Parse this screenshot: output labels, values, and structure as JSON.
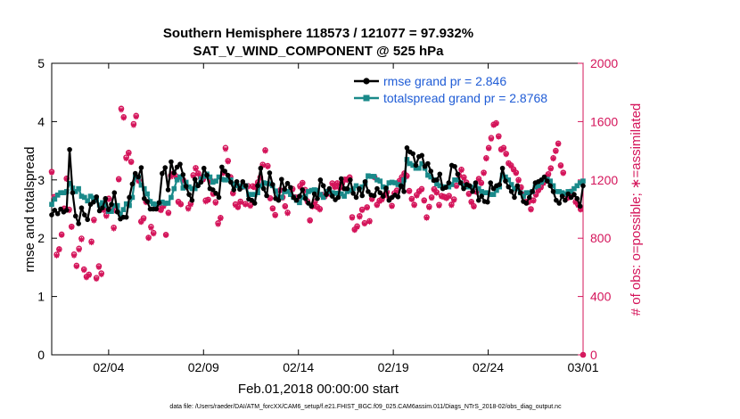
{
  "chart_data": {
    "type": "line",
    "title": "Southern Hemisphere 118573 / 121077 = 97.932%",
    "subtitle": "SAT_V_WIND_COMPONENT @ 525 hPa",
    "xlabel": "Feb.01,2018 00:00:00 start",
    "ylabel_left": "rmse and totalspread",
    "ylabel_right": "# of obs: o=possible; ∗=assimilated",
    "footer": "data file: /Users/raeder/DAI/ATM_forcXX/CAM6_setup/f.e21.FHIST_BGC.f09_025.CAM6assim.011/Diags_NTrS_2018-02/obs_diag_output.nc",
    "x_range_days": [
      0,
      28
    ],
    "ylim_left": [
      0,
      5
    ],
    "ylim_right": [
      0,
      2000
    ],
    "grid": false,
    "legend_position": "top-right",
    "x_ticks": [
      {
        "day": 3,
        "label": "02/04"
      },
      {
        "day": 8,
        "label": "02/09"
      },
      {
        "day": 13,
        "label": "02/14"
      },
      {
        "day": 18,
        "label": "02/19"
      },
      {
        "day": 23,
        "label": "02/24"
      },
      {
        "day": 28,
        "label": "03/01"
      }
    ],
    "y_ticks_left": [
      "0",
      "1",
      "2",
      "3",
      "4",
      "5"
    ],
    "y_ticks_right": [
      "0",
      "400",
      "800",
      "1200",
      "1600",
      "2000"
    ],
    "colors": {
      "rmse": "#000000",
      "spread": "#1a8a8a",
      "obs": "#d4145a",
      "legend_text": "#1f5cd6"
    },
    "series": [
      {
        "name": "rmse grand pr = 2.846",
        "axis": "left",
        "values": [
          2.4,
          2.48,
          2.42,
          2.5,
          2.45,
          2.48,
          3.52,
          2.78,
          2.38,
          2.25,
          2.52,
          2.4,
          2.32,
          2.58,
          2.62,
          2.71,
          2.47,
          2.52,
          2.68,
          2.49,
          2.58,
          2.78,
          2.45,
          2.33,
          2.36,
          2.36,
          2.7,
          2.93,
          3.11,
          3.05,
          3.21,
          2.68,
          2.63,
          2.5,
          2.5,
          2.5,
          2.61,
          3.11,
          3.21,
          2.83,
          3.31,
          3.12,
          3.22,
          3.27,
          3.09,
          2.89,
          2.75,
          2.65,
          3.01,
          2.9,
          2.96,
          3.2,
          3.08,
          2.85,
          2.83,
          2.77,
          2.7,
          3.22,
          3.15,
          3.08,
          2.96,
          2.83,
          2.97,
          2.84,
          2.97,
          2.9,
          2.67,
          2.65,
          2.6,
          2.9,
          3.2,
          2.85,
          2.73,
          3.12,
          2.92,
          2.68,
          2.65,
          3.01,
          2.84,
          2.94,
          2.87,
          2.7,
          2.65,
          2.72,
          2.83,
          2.68,
          2.6,
          2.55,
          2.76,
          2.68,
          3.0,
          2.9,
          2.75,
          2.85,
          2.72,
          2.66,
          2.7,
          3.02,
          2.85,
          2.85,
          3.0,
          2.77,
          2.7,
          2.85,
          2.73,
          2.97,
          2.8,
          2.74,
          2.73,
          2.85,
          2.78,
          2.72,
          2.86,
          2.65,
          2.7,
          2.74,
          2.71,
          2.9,
          2.8,
          3.55,
          3.48,
          3.45,
          3.25,
          3.4,
          3.42,
          3.23,
          3.28,
          3.15,
          2.99,
          3.0,
          3.1,
          2.85,
          2.87,
          2.95,
          3.25,
          3.23,
          3.1,
          2.95,
          2.85,
          2.92,
          2.9,
          2.8,
          2.95,
          2.65,
          2.72,
          2.63,
          2.62,
          2.95,
          2.85,
          2.9,
          2.92,
          3.2,
          2.98,
          2.88,
          2.8,
          2.7,
          2.9,
          2.78,
          2.63,
          2.6,
          2.7,
          2.8,
          2.95,
          2.97,
          3.0,
          3.05,
          2.98,
          2.9,
          2.8,
          2.65,
          2.6,
          2.72,
          2.65,
          2.76,
          2.7,
          2.75,
          2.68,
          2.55,
          2.9
        ]
      },
      {
        "name": "totalspread grand pr = 2.8768",
        "axis": "left",
        "values": [
          2.58,
          2.67,
          2.74,
          2.78,
          2.78,
          2.8,
          2.94,
          2.86,
          2.8,
          2.85,
          2.72,
          2.7,
          2.64,
          2.72,
          2.69,
          2.65,
          2.57,
          2.61,
          2.57,
          2.46,
          2.46,
          2.56,
          2.56,
          2.41,
          2.49,
          2.59,
          2.56,
          2.7,
          3.05,
          3.05,
          2.91,
          2.85,
          2.76,
          2.63,
          2.59,
          2.58,
          2.6,
          2.62,
          2.6,
          2.6,
          2.7,
          2.85,
          3.0,
          3.05,
          2.86,
          2.96,
          2.88,
          2.85,
          2.85,
          2.92,
          3.02,
          3.06,
          3.1,
          3.05,
          2.96,
          2.98,
          3.05,
          3.01,
          3.0,
          3.0,
          3.0,
          2.93,
          2.9,
          2.9,
          2.88,
          2.9,
          2.75,
          2.75,
          2.75,
          2.78,
          2.9,
          2.95,
          2.94,
          2.93,
          2.9,
          2.81,
          2.7,
          2.7,
          2.8,
          2.8,
          2.75,
          2.7,
          2.65,
          2.61,
          2.7,
          2.72,
          2.8,
          2.82,
          2.83,
          2.82,
          2.75,
          2.7,
          2.8,
          2.8,
          2.78,
          2.77,
          2.77,
          2.76,
          2.72,
          2.8,
          2.82,
          2.85,
          2.9,
          2.85,
          2.88,
          2.95,
          3.07,
          3.06,
          3.06,
          3.0,
          2.98,
          2.88,
          2.86,
          2.95,
          2.96,
          2.95,
          2.92,
          2.9,
          3.0,
          3.35,
          3.28,
          3.25,
          3.2,
          3.2,
          3.28,
          3.2,
          3.08,
          3.05,
          3.0,
          2.93,
          2.9,
          2.88,
          2.88,
          2.88,
          2.92,
          3.0,
          3.0,
          2.95,
          2.9,
          2.88,
          2.88,
          2.87,
          2.9,
          2.85,
          2.8,
          2.78,
          2.78,
          2.75,
          2.75,
          2.82,
          2.88,
          3.08,
          3.05,
          3.0,
          2.92,
          2.85,
          2.85,
          2.78,
          2.72,
          2.78,
          2.78,
          2.8,
          2.88,
          2.9,
          2.96,
          3.0,
          3.01,
          2.98,
          2.9,
          2.8,
          2.8,
          2.78,
          2.76,
          2.8,
          2.8,
          2.85,
          2.9,
          2.95,
          2.98
        ]
      },
      {
        "name": "# of obs possible",
        "axis": "right",
        "values": [
          1256,
          1084,
          688,
          725,
          826,
          1004,
          1210,
          997,
          880,
          689,
          612,
          729,
          798,
          587,
          536,
          551,
          777,
          927,
          528,
          608,
          559,
          999,
          958,
          1072,
          1002,
          873,
          990,
          1206,
          1689,
          1631,
          1354,
          1387,
          1325,
          1584,
          1640,
          1196,
          915,
          938,
          1050,
          804,
          879,
          837,
          1027,
          1006,
          995,
          1023,
          824,
          975,
          1230,
          1244,
          1227,
          1051,
          1034,
          1200,
          1159,
          1009,
          1039,
          1233,
          1282,
          1245,
          1216,
          1207,
          1059,
          1065,
          1196,
          1107,
          1048,
          903,
          940,
          1250,
          1420,
          1331,
          1220,
          1110,
          1033,
          1015,
          1052,
          1154,
          1036,
          1159,
          1027,
          1157,
          1153,
          1184,
          1218,
          1305,
          1404,
          1296,
          1075,
          1005,
          960,
          1077,
          1130,
          1082,
          1020,
          976,
          1122,
          1139,
          1082,
          1079,
          1159,
          1180,
          1133,
          1054,
          923,
          1020,
          1049,
          1014,
          1001,
          1099,
          1090,
          1120,
          1107,
          1177,
          1153,
          1178,
          1149,
          1177,
          1203,
          1204,
          1218,
          945,
          860,
          882,
          952,
          997,
          904,
          1013,
          918,
          1071,
          1220,
          1030,
          1058,
          1069,
          1096,
          1117,
          1071,
          1023,
          1109,
          1128,
          1193,
          1219,
          1245,
          1228,
          1125,
          1070,
          1030,
          1097,
          1123,
          1138,
          1060,
          944,
          1016,
          1081,
          1137,
          1116,
          1029,
          1091,
          1085,
          1079,
          1091,
          1031,
          1067,
          1162,
          1233,
          1271,
          1218,
          1183,
          1105,
          1050,
          1020,
          1120,
          1208,
          1180,
          1250,
          1350,
          1420,
          1488,
          1580,
          1590,
          1500,
          1410,
          1420,
          1380,
          1315,
          1300,
          1273,
          1250,
          1200,
          1150,
          1100,
          1050,
          1050,
          1000,
          1060,
          1100,
          1130,
          1150,
          1180,
          1220,
          1240,
          1280,
          1350,
          1400,
          1450,
          1300,
          1250,
          1100,
          1080,
          1120,
          1100,
          1050,
          1030,
          1000,
          0
        ]
      },
      {
        "name": "# of obs assimilated",
        "axis": "right",
        "values": [
          1250,
          1080,
          680,
          720,
          820,
          1000,
          1205,
          990,
          875,
          680,
          605,
          720,
          790,
          580,
          530,
          545,
          770,
          920,
          520,
          600,
          550,
          990,
          950,
          1065,
          995,
          865,
          985,
          1200,
          1680,
          1625,
          1345,
          1380,
          1320,
          1575,
          1632,
          1190,
          910,
          930,
          1045,
          800,
          870,
          830,
          1020,
          1000,
          990,
          1015,
          820,
          970,
          1220,
          1240,
          1220,
          1045,
          1030,
          1195,
          1150,
          1000,
          1030,
          1225,
          1275,
          1240,
          1210,
          1200,
          1050,
          1060,
          1190,
          1100,
          1040,
          895,
          935,
          1245,
          1410,
          1325,
          1215,
          1105,
          1025,
          1010,
          1045,
          1150,
          1030,
          1150,
          1020,
          1150,
          1145,
          1178,
          1210,
          1298,
          1398,
          1290,
          1070,
          1000,
          955,
          1070,
          1125,
          1075,
          1015,
          970,
          1115,
          1132,
          1075,
          1070,
          1150,
          1175,
          1125,
          1048,
          918,
          1015,
          1042,
          1010,
          995,
          1092,
          1083,
          1115,
          1100,
          1170,
          1148,
          1172,
          1142,
          1170,
          1198,
          1198,
          1212,
          938,
          855,
          875,
          945,
          990,
          898,
          1008,
          912,
          1065,
          1215,
          1025,
          1052,
          1062,
          1090,
          1112,
          1065,
          1018,
          1102,
          1122,
          1188,
          1212,
          1240,
          1222,
          1120,
          1065,
          1025,
          1090,
          1117,
          1132,
          1055,
          938,
          1010,
          1075,
          1130,
          1110,
          1022,
          1085,
          1080,
          1072,
          1085,
          1025,
          1060,
          1155,
          1228,
          1265,
          1212,
          1178,
          1100,
          1045,
          1015,
          1115,
          1202,
          1175,
          1245,
          1345,
          1415,
          1480,
          1575,
          1585,
          1495,
          1405,
          1415,
          1375,
          1310,
          1295,
          1268,
          1245,
          1195,
          1145,
          1095,
          1045,
          1045,
          995,
          1055,
          1095,
          1125,
          1145,
          1175,
          1215,
          1235,
          1275,
          1345,
          1395,
          1445,
          1295,
          1245,
          1095,
          1075,
          1115,
          1095,
          1045,
          1025,
          995,
          0
        ]
      }
    ]
  }
}
